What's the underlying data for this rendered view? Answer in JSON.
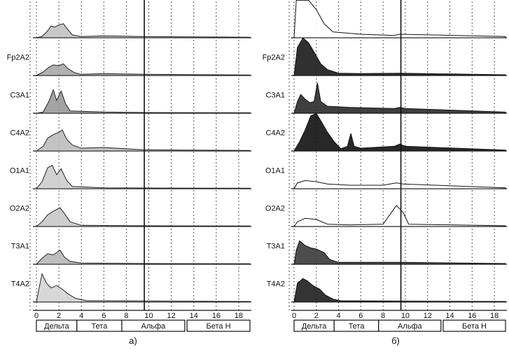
{
  "charts": [
    {
      "id": "a",
      "caption": "а)",
      "axis": {
        "min": 0,
        "max": 19,
        "ticks": [
          0,
          2,
          4,
          6,
          8,
          10,
          12,
          14,
          16,
          18
        ],
        "tick_labels": [
          "0",
          "2",
          "4",
          "6",
          "8",
          "10",
          "12",
          "14",
          "16",
          "18"
        ],
        "marker": 9.6
      },
      "bands": [
        {
          "label": "Дельта",
          "from": 0,
          "to": 3.6
        },
        {
          "label": "Тета",
          "from": 3.6,
          "to": 7.6
        },
        {
          "label": "Альфа",
          "from": 7.6,
          "to": 13.2
        },
        {
          "label": "Бета Н",
          "from": 13.4,
          "to": 19
        }
      ]
    },
    {
      "id": "b",
      "caption": "б)",
      "axis": {
        "min": 0,
        "max": 19,
        "ticks": [
          0,
          2,
          4,
          6,
          8,
          10,
          12,
          14,
          16,
          18
        ],
        "tick_labels": [
          "0",
          "2",
          "4",
          "6",
          "8",
          "10",
          "12",
          "14",
          "16",
          "18"
        ],
        "marker": 9.6
      },
      "bands": [
        {
          "label": "Дельта",
          "from": 0,
          "to": 3.6
        },
        {
          "label": "Тета",
          "from": 3.6,
          "to": 7.6
        },
        {
          "label": "Альфа",
          "from": 7.6,
          "to": 13.2
        },
        {
          "label": "Бета Н",
          "from": 13.4,
          "to": 19
        }
      ]
    }
  ],
  "chart_data": [
    {
      "type": "area",
      "title": "а)",
      "xlabel": "",
      "ylabel": "",
      "xlim": [
        0,
        19
      ],
      "grid": true,
      "series": [
        {
          "name": "",
          "color": "#9e9e9e",
          "points": [
            [
              0,
              0
            ],
            [
              0.5,
              0.05
            ],
            [
              1,
              0.3
            ],
            [
              1.3,
              0.5
            ],
            [
              1.6,
              0.45
            ],
            [
              2,
              0.55
            ],
            [
              2.4,
              0.6
            ],
            [
              2.8,
              0.35
            ],
            [
              3.2,
              0.12
            ],
            [
              4,
              0.05
            ],
            [
              6,
              0.08
            ],
            [
              9.5,
              0.05
            ],
            [
              19,
              0.02
            ]
          ]
        },
        {
          "name": "Fp2A2",
          "color": "#9e9e9e",
          "points": [
            [
              0,
              0
            ],
            [
              0.6,
              0.15
            ],
            [
              1.1,
              0.35
            ],
            [
              1.5,
              0.45
            ],
            [
              2,
              0.42
            ],
            [
              2.4,
              0.5
            ],
            [
              2.8,
              0.3
            ],
            [
              3.4,
              0.12
            ],
            [
              4,
              0.05
            ],
            [
              6,
              0.08
            ],
            [
              9.5,
              0.05
            ],
            [
              19,
              0.02
            ]
          ]
        },
        {
          "name": "C3A1",
          "color": "#9e9e9e",
          "points": [
            [
              0,
              0
            ],
            [
              0.6,
              0.05
            ],
            [
              1.1,
              0.5
            ],
            [
              1.5,
              1.0
            ],
            [
              1.8,
              0.55
            ],
            [
              2.2,
              0.95
            ],
            [
              2.6,
              0.4
            ],
            [
              3,
              0.1
            ],
            [
              6,
              0.05
            ],
            [
              10,
              0.03
            ],
            [
              19,
              0.02
            ]
          ]
        },
        {
          "name": "C4A2",
          "color": "#9e9e9e",
          "points": [
            [
              0,
              0
            ],
            [
              0.6,
              0.2
            ],
            [
              1,
              0.55
            ],
            [
              1.5,
              0.7
            ],
            [
              2,
              0.8
            ],
            [
              2.3,
              0.9
            ],
            [
              2.7,
              0.5
            ],
            [
              3.2,
              0.25
            ],
            [
              4,
              0.12
            ],
            [
              6,
              0.15
            ],
            [
              9.5,
              0.05
            ],
            [
              19,
              0.02
            ]
          ]
        },
        {
          "name": "O1A1",
          "color": "#9e9e9e",
          "points": [
            [
              0,
              0
            ],
            [
              0.5,
              0.3
            ],
            [
              1,
              0.9
            ],
            [
              1.4,
              1.0
            ],
            [
              1.8,
              0.6
            ],
            [
              2.2,
              0.85
            ],
            [
              2.7,
              0.35
            ],
            [
              3.2,
              0.1
            ],
            [
              6,
              0.04
            ],
            [
              10,
              0.03
            ],
            [
              19,
              0.02
            ]
          ]
        },
        {
          "name": "O2A2",
          "color": "#9e9e9e",
          "points": [
            [
              0,
              0
            ],
            [
              0.5,
              0.2
            ],
            [
              1,
              0.5
            ],
            [
              1.5,
              0.65
            ],
            [
              2.1,
              0.8
            ],
            [
              2.5,
              0.55
            ],
            [
              3,
              0.2
            ],
            [
              4,
              0.05
            ],
            [
              10,
              0.03
            ],
            [
              19,
              0.02
            ]
          ]
        },
        {
          "name": "T3A1",
          "color": "#9e9e9e",
          "points": [
            [
              0,
              0
            ],
            [
              0.5,
              0.25
            ],
            [
              1,
              0.45
            ],
            [
              1.5,
              0.4
            ],
            [
              2.1,
              0.6
            ],
            [
              2.5,
              0.3
            ],
            [
              3,
              0.12
            ],
            [
              4,
              0.05
            ],
            [
              10,
              0.03
            ],
            [
              19,
              0.02
            ]
          ]
        },
        {
          "name": "T4A2",
          "color": "#9e9e9e",
          "points": [
            [
              0,
              0
            ],
            [
              0.2,
              0.5
            ],
            [
              0.5,
              1.2
            ],
            [
              0.9,
              0.8
            ],
            [
              1.3,
              0.6
            ],
            [
              1.8,
              0.7
            ],
            [
              2.3,
              0.55
            ],
            [
              2.8,
              0.35
            ],
            [
              3.5,
              0.15
            ],
            [
              4.5,
              0.05
            ],
            [
              19,
              0.02
            ]
          ]
        }
      ]
    },
    {
      "type": "area",
      "title": "б)",
      "xlabel": "",
      "ylabel": "",
      "xlim": [
        0,
        19
      ],
      "grid": true,
      "series": [
        {
          "name": "",
          "color": "#555555",
          "points": [
            [
              0,
              0
            ],
            [
              0.2,
              1.6
            ],
            [
              0.7,
              2.1
            ],
            [
              1.3,
              1.8
            ],
            [
              2,
              1.2
            ],
            [
              2.7,
              0.6
            ],
            [
              3.5,
              0.25
            ],
            [
              6,
              0.15
            ],
            [
              9,
              0.1
            ],
            [
              9.5,
              0.15
            ],
            [
              19,
              0.05
            ]
          ]
        },
        {
          "name": "Fp2A2",
          "color": "#222222",
          "points": [
            [
              0,
              0
            ],
            [
              0.3,
              1.2
            ],
            [
              0.8,
              1.6
            ],
            [
              1.3,
              1.4
            ],
            [
              1.8,
              1.0
            ],
            [
              2.4,
              0.5
            ],
            [
              3,
              0.25
            ],
            [
              4,
              0.1
            ],
            [
              6,
              0.08
            ],
            [
              9.5,
              0.1
            ],
            [
              19,
              0.03
            ]
          ]
        },
        {
          "name": "C3A1",
          "color": "#222222",
          "points": [
            [
              0,
              0
            ],
            [
              0.3,
              0.5
            ],
            [
              0.6,
              0.8
            ],
            [
              1,
              0.6
            ],
            [
              1.4,
              0.45
            ],
            [
              1.8,
              0.5
            ],
            [
              2.1,
              1.3
            ],
            [
              2.4,
              0.5
            ],
            [
              3,
              0.3
            ],
            [
              5,
              0.25
            ],
            [
              9,
              0.2
            ],
            [
              9.5,
              0.25
            ],
            [
              10,
              0.2
            ],
            [
              19,
              0.05
            ]
          ]
        },
        {
          "name": "C4A2",
          "color": "#222222",
          "points": [
            [
              0,
              0
            ],
            [
              0.5,
              0.4
            ],
            [
              1,
              0.9
            ],
            [
              1.5,
              1.5
            ],
            [
              2,
              1.8
            ],
            [
              2.4,
              1.3
            ],
            [
              3,
              0.8
            ],
            [
              3.6,
              0.4
            ],
            [
              4.2,
              0.1
            ],
            [
              4.8,
              0.2
            ],
            [
              5.1,
              0.75
            ],
            [
              5.4,
              0.2
            ],
            [
              6,
              0.12
            ],
            [
              9,
              0.2
            ],
            [
              9.5,
              0.3
            ],
            [
              10,
              0.2
            ],
            [
              19,
              0.04
            ]
          ]
        },
        {
          "name": "O1A1",
          "color": "#444444",
          "points": [
            [
              0,
              0
            ],
            [
              0.3,
              0.25
            ],
            [
              1,
              0.35
            ],
            [
              2,
              0.3
            ],
            [
              3,
              0.2
            ],
            [
              5,
              0.15
            ],
            [
              8,
              0.15
            ],
            [
              9.2,
              0.25
            ],
            [
              9.8,
              0.2
            ],
            [
              19,
              0.04
            ]
          ]
        },
        {
          "name": "O2A2",
          "color": "#444444",
          "points": [
            [
              0,
              0
            ],
            [
              0.3,
              0.2
            ],
            [
              1,
              0.35
            ],
            [
              2,
              0.3
            ],
            [
              3,
              0.1
            ],
            [
              5,
              0.07
            ],
            [
              8,
              0.1
            ],
            [
              9.2,
              0.9
            ],
            [
              9.8,
              0.6
            ],
            [
              10.3,
              0.1
            ],
            [
              19,
              0.03
            ]
          ]
        },
        {
          "name": "T3A1",
          "color": "#444444",
          "points": [
            [
              0,
              0
            ],
            [
              0.2,
              0.6
            ],
            [
              0.5,
              1.0
            ],
            [
              1,
              0.8
            ],
            [
              1.5,
              0.7
            ],
            [
              2,
              0.65
            ],
            [
              2.7,
              0.5
            ],
            [
              3.2,
              0.2
            ],
            [
              4,
              0.08
            ],
            [
              9.5,
              0.08
            ],
            [
              19,
              0.03
            ]
          ]
        },
        {
          "name": "T4A2",
          "color": "#222222",
          "points": [
            [
              0,
              0
            ],
            [
              0.3,
              0.8
            ],
            [
              0.8,
              1.0
            ],
            [
              1.2,
              0.9
            ],
            [
              1.7,
              0.7
            ],
            [
              2.3,
              0.55
            ],
            [
              2.8,
              0.3
            ],
            [
              3.5,
              0.12
            ],
            [
              4.2,
              0.05
            ],
            [
              9.5,
              0.04
            ],
            [
              19,
              0.02
            ]
          ]
        }
      ]
    }
  ]
}
